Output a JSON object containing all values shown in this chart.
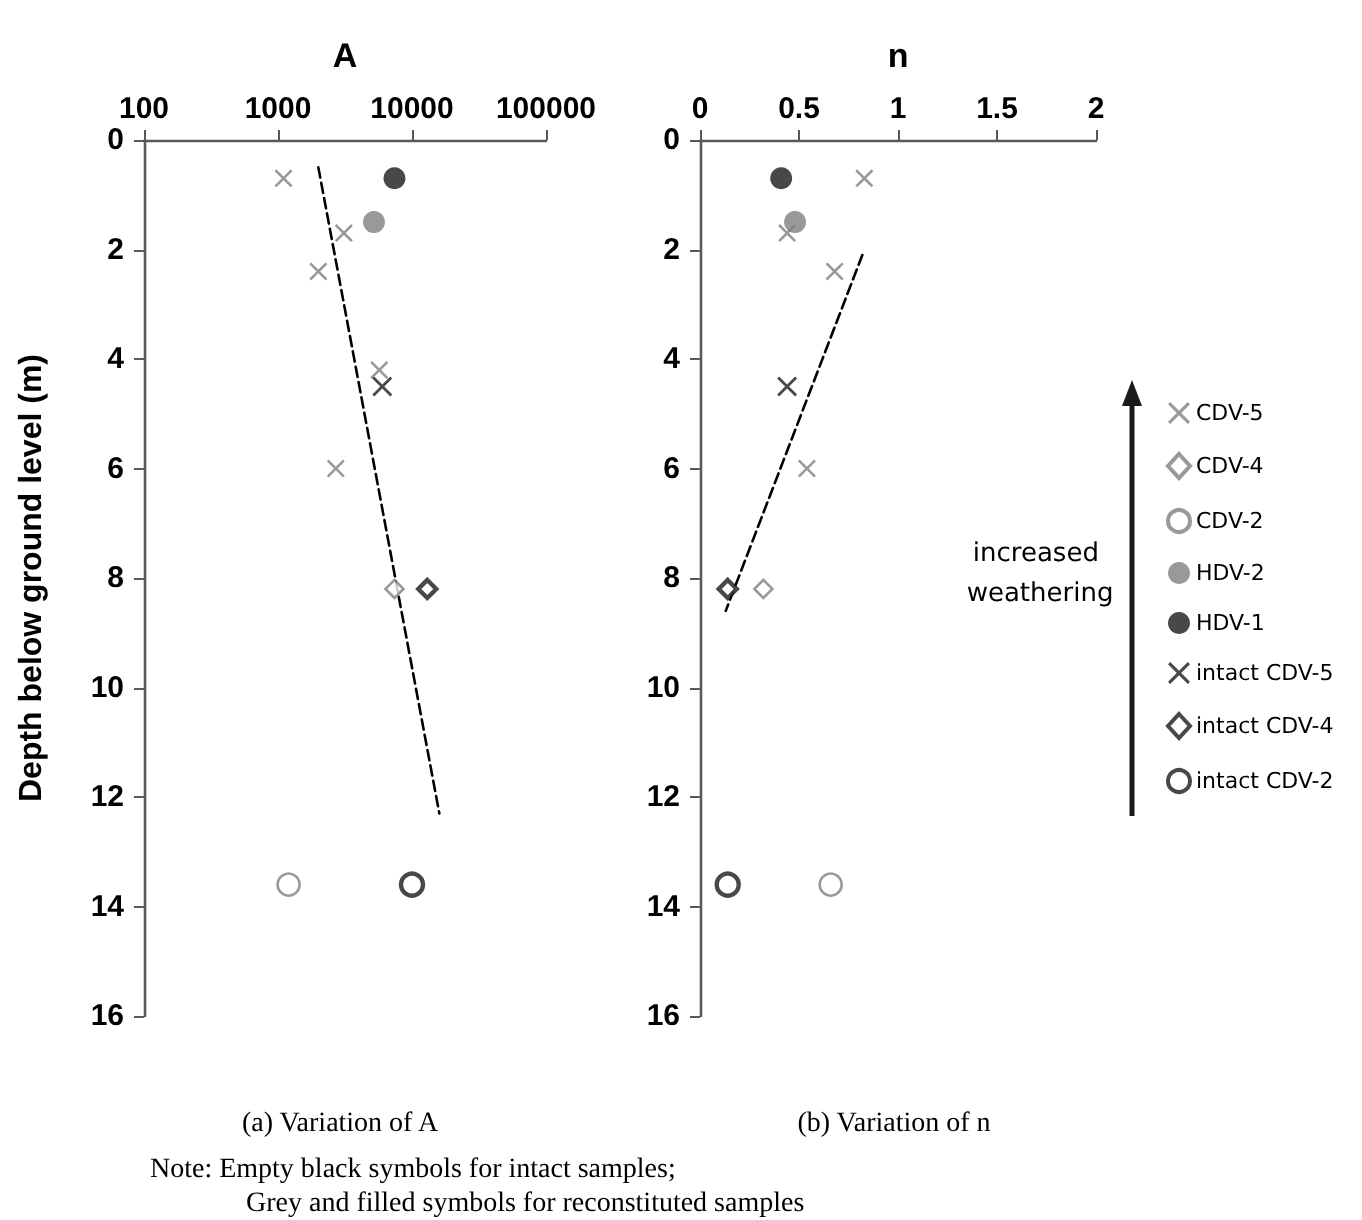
{
  "chart_data": [
    {
      "type": "scatter",
      "title": "A",
      "ylabel": "Depth below ground level (m)",
      "annotations": [
        "(a) Variation of A"
      ],
      "xlim": [
        100,
        100000
      ],
      "xticks": [
        100,
        1000,
        10000,
        100000
      ],
      "log": "x",
      "ylim": [
        16,
        0
      ],
      "yticks": [
        0,
        2,
        4,
        6,
        8,
        10,
        12,
        14,
        16
      ],
      "grid": false,
      "legend": false,
      "series": [
        {
          "color": "#808080",
          "marker": "cross",
          "x": [
            1100,
            3100,
            2000,
            5700,
            2700
          ],
          "values": [
            0.7,
            1.7,
            2.4,
            4.2,
            6.0
          ]
        },
        {
          "color": "#808080",
          "marker": "diamond",
          "x": [
            7400
          ],
          "values": [
            8.2
          ]
        },
        {
          "color": "#808080",
          "marker": "circle",
          "x": [
            1200
          ],
          "values": [
            13.6
          ]
        },
        {
          "color": "#808080",
          "marker": "circle",
          "x": [
            5200
          ],
          "values": [
            1.5
          ]
        },
        {
          "color": "#1a1a1a",
          "marker": "circle",
          "x": [
            7400
          ],
          "values": [
            0.7
          ]
        },
        {
          "color": "#1a1a1a",
          "marker": "cross",
          "x": [
            6000
          ],
          "values": [
            4.5
          ]
        },
        {
          "color": "#1a1a1a",
          "marker": "diamond",
          "x": [
            13000
          ],
          "values": [
            8.2
          ]
        },
        {
          "color": "#1a1a1a",
          "marker": "circle",
          "x": [
            10000
          ],
          "values": [
            13.6
          ]
        },
        {
          "type": "line",
          "color": "#000000",
          "marker": "none",
          "line_style": "dashed",
          "x": [
            2000,
            16000
          ],
          "values": [
            0.5,
            12.3
          ]
        }
      ]
    },
    {
      "type": "scatter",
      "title": "n",
      "annotations": [
        "increased weathering",
        "(b) Variation of n",
        "Note: Empty black symbols for intact samples;",
        "Grey and filled symbols for reconstituted samples"
      ],
      "xlim": [
        0,
        2
      ],
      "xticks": [
        0,
        0.5,
        1,
        1.5,
        2
      ],
      "ylim": [
        16,
        0
      ],
      "yticks": [
        0,
        2,
        4,
        6,
        8,
        10,
        12,
        14,
        16
      ],
      "grid": false,
      "legend": "right",
      "series": [
        {
          "name": "CDV-5",
          "color": "#808080",
          "marker": "cross",
          "x": [
            0.83,
            0.44,
            0.68,
            0.54
          ],
          "values": [
            0.7,
            1.7,
            2.4,
            6.0
          ]
        },
        {
          "name": "CDV-4",
          "color": "#808080",
          "marker": "diamond",
          "x": [
            0.32
          ],
          "values": [
            8.2
          ]
        },
        {
          "name": "CDV-2",
          "color": "#808080",
          "marker": "circle",
          "x": [
            0.66
          ],
          "values": [
            13.6
          ]
        },
        {
          "name": "HDV-2",
          "color": "#808080",
          "marker": "circle",
          "x": [
            0.48
          ],
          "values": [
            1.5
          ]
        },
        {
          "name": "HDV-1",
          "color": "#1a1a1a",
          "marker": "circle",
          "x": [
            0.41
          ],
          "values": [
            0.7
          ]
        },
        {
          "name": "intact CDV-5",
          "color": "#1a1a1a",
          "marker": "cross",
          "x": [
            0.44
          ],
          "values": [
            4.5
          ]
        },
        {
          "name": "intact CDV-4",
          "color": "#1a1a1a",
          "marker": "diamond",
          "x": [
            0.14
          ],
          "values": [
            8.2
          ]
        },
        {
          "name": "intact CDV-2",
          "color": "#1a1a1a",
          "marker": "circle",
          "x": [
            0.14
          ],
          "values": [
            13.6
          ]
        },
        {
          "type": "line",
          "color": "#000000",
          "marker": "none",
          "line_style": "dashed",
          "x": [
            0.82,
            0.13
          ],
          "values": [
            2.1,
            8.6
          ]
        }
      ]
    }
  ]
}
